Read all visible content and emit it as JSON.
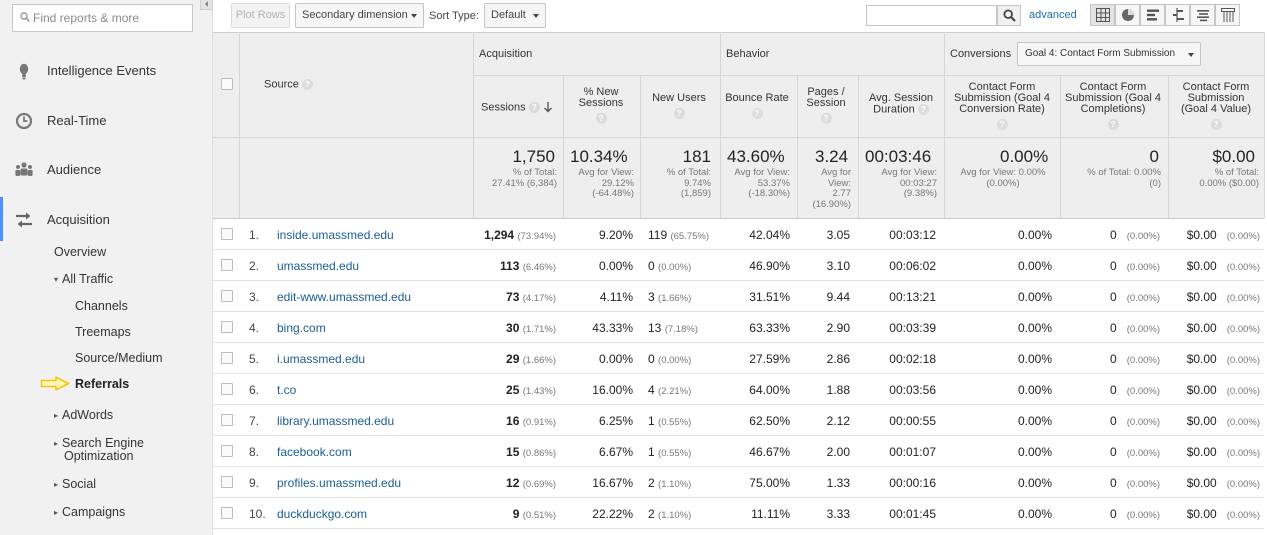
{
  "sidebar": {
    "search_placeholder": "Find reports & more",
    "main_items": [
      {
        "label": "Intelligence Events",
        "icon": "lightbulb-icon"
      },
      {
        "label": "Real-Time",
        "icon": "clock-icon"
      },
      {
        "label": "Audience",
        "icon": "people-icon"
      },
      {
        "label": "Acquisition",
        "icon": "acquisition-icon",
        "active": true
      }
    ],
    "overview": "Overview",
    "all_traffic": "All Traffic",
    "all_traffic_children": [
      "Channels",
      "Treemaps",
      "Source/Medium",
      "Referrals"
    ],
    "adwords": "AdWords",
    "seo_line1": "Search Engine",
    "seo_line2": "Optimization",
    "social": "Social",
    "campaigns": "Campaigns",
    "highlight_color": "#f4c20d"
  },
  "toolbar": {
    "plot_rows": "Plot Rows",
    "secondary_dimension": "Secondary dimension",
    "sort_type_label": "Sort Type:",
    "sort_type_value": "Default",
    "search_value": "",
    "advanced": "advanced",
    "view_icons": [
      "data-table-icon",
      "pie-chart-icon",
      "performance-icon",
      "comparison-icon",
      "term-cloud-icon",
      "pivot-icon"
    ]
  },
  "table": {
    "source_header": "Source",
    "groups": {
      "acquisition": "Acquisition",
      "behavior": "Behavior",
      "conversions": "Conversions"
    },
    "goal_select": "Goal 4: Contact Form Submission",
    "columns": {
      "sessions": "Sessions",
      "pct_new_sessions": "% New Sessions",
      "new_users": "New Users",
      "bounce_rate": "Bounce Rate",
      "pages_session": "Pages / Session",
      "avg_duration": "Avg. Session Duration",
      "goal_conv_rate": "Contact Form Submission (Goal 4 Conversion Rate)",
      "goal_completions": "Contact Form Submission (Goal 4 Completions)",
      "goal_value": "Contact Form Submission (Goal 4 Value)"
    },
    "totals": {
      "sessions": {
        "value": "1,750",
        "sub": "% of Total:\n27.41% (6,384)"
      },
      "pct_new_sessions": {
        "value": "10.34%",
        "sub": "Avg for View:\n29.12%\n(-64.48%)"
      },
      "new_users": {
        "value": "181",
        "sub": "% of Total:\n9.74%\n(1,859)"
      },
      "bounce_rate": {
        "value": "43.60%",
        "sub": "Avg for View:\n53.37%\n(-18.30%)"
      },
      "pages_session": {
        "value": "3.24",
        "sub": "Avg for\nView:\n2.77\n(16.90%)"
      },
      "avg_duration": {
        "value": "00:03:46",
        "sub": "Avg for View:\n00:03:27\n(9.38%)"
      },
      "goal_conv_rate": {
        "value": "0.00%",
        "sub": "Avg for View: 0.00%\n(0.00%)"
      },
      "goal_completions": {
        "value": "0",
        "sub": "% of Total: 0.00%\n(0)"
      },
      "goal_value": {
        "value": "$0.00",
        "sub": "% of Total:\n0.00% ($0.00)"
      }
    },
    "rows": [
      {
        "idx": "1.",
        "source": "inside.umassmed.edu",
        "sessions": "1,294",
        "sessions_pct": "(73.94%)",
        "pct_new": "9.20%",
        "new_users": "119",
        "new_users_pct": "(65.75%)",
        "bounce": "42.04%",
        "pages": "3.05",
        "duration": "00:03:12",
        "conv_rate": "0.00%",
        "completions": "0",
        "completions_pct": "(0.00%)",
        "value": "$0.00",
        "value_pct": "(0.00%)"
      },
      {
        "idx": "2.",
        "source": "umassmed.edu",
        "sessions": "113",
        "sessions_pct": "(6.46%)",
        "pct_new": "0.00%",
        "new_users": "0",
        "new_users_pct": "(0.00%)",
        "bounce": "46.90%",
        "pages": "3.10",
        "duration": "00:06:02",
        "conv_rate": "0.00%",
        "completions": "0",
        "completions_pct": "(0.00%)",
        "value": "$0.00",
        "value_pct": "(0.00%)"
      },
      {
        "idx": "3.",
        "source": "edit-www.umassmed.edu",
        "sessions": "73",
        "sessions_pct": "(4.17%)",
        "pct_new": "4.11%",
        "new_users": "3",
        "new_users_pct": "(1.66%)",
        "bounce": "31.51%",
        "pages": "9.44",
        "duration": "00:13:21",
        "conv_rate": "0.00%",
        "completions": "0",
        "completions_pct": "(0.00%)",
        "value": "$0.00",
        "value_pct": "(0.00%)"
      },
      {
        "idx": "4.",
        "source": "bing.com",
        "sessions": "30",
        "sessions_pct": "(1.71%)",
        "pct_new": "43.33%",
        "new_users": "13",
        "new_users_pct": "(7.18%)",
        "bounce": "63.33%",
        "pages": "2.90",
        "duration": "00:03:39",
        "conv_rate": "0.00%",
        "completions": "0",
        "completions_pct": "(0.00%)",
        "value": "$0.00",
        "value_pct": "(0.00%)"
      },
      {
        "idx": "5.",
        "source": "i.umassmed.edu",
        "sessions": "29",
        "sessions_pct": "(1.66%)",
        "pct_new": "0.00%",
        "new_users": "0",
        "new_users_pct": "(0.00%)",
        "bounce": "27.59%",
        "pages": "2.86",
        "duration": "00:02:18",
        "conv_rate": "0.00%",
        "completions": "0",
        "completions_pct": "(0.00%)",
        "value": "$0.00",
        "value_pct": "(0.00%)"
      },
      {
        "idx": "6.",
        "source": "t.co",
        "sessions": "25",
        "sessions_pct": "(1.43%)",
        "pct_new": "16.00%",
        "new_users": "4",
        "new_users_pct": "(2.21%)",
        "bounce": "64.00%",
        "pages": "1.88",
        "duration": "00:03:56",
        "conv_rate": "0.00%",
        "completions": "0",
        "completions_pct": "(0.00%)",
        "value": "$0.00",
        "value_pct": "(0.00%)"
      },
      {
        "idx": "7.",
        "source": "library.umassmed.edu",
        "sessions": "16",
        "sessions_pct": "(0.91%)",
        "pct_new": "6.25%",
        "new_users": "1",
        "new_users_pct": "(0.55%)",
        "bounce": "62.50%",
        "pages": "2.12",
        "duration": "00:00:55",
        "conv_rate": "0.00%",
        "completions": "0",
        "completions_pct": "(0.00%)",
        "value": "$0.00",
        "value_pct": "(0.00%)"
      },
      {
        "idx": "8.",
        "source": "facebook.com",
        "sessions": "15",
        "sessions_pct": "(0.86%)",
        "pct_new": "6.67%",
        "new_users": "1",
        "new_users_pct": "(0.55%)",
        "bounce": "46.67%",
        "pages": "2.00",
        "duration": "00:01:07",
        "conv_rate": "0.00%",
        "completions": "0",
        "completions_pct": "(0.00%)",
        "value": "$0.00",
        "value_pct": "(0.00%)"
      },
      {
        "idx": "9.",
        "source": "profiles.umassmed.edu",
        "sessions": "12",
        "sessions_pct": "(0.69%)",
        "pct_new": "16.67%",
        "new_users": "2",
        "new_users_pct": "(1.10%)",
        "bounce": "75.00%",
        "pages": "1.33",
        "duration": "00:00:16",
        "conv_rate": "0.00%",
        "completions": "0",
        "completions_pct": "(0.00%)",
        "value": "$0.00",
        "value_pct": "(0.00%)"
      },
      {
        "idx": "10.",
        "source": "duckduckgo.com",
        "sessions": "9",
        "sessions_pct": "(0.51%)",
        "pct_new": "22.22%",
        "new_users": "2",
        "new_users_pct": "(1.10%)",
        "bounce": "11.11%",
        "pages": "3.33",
        "duration": "00:01:45",
        "conv_rate": "0.00%",
        "completions": "0",
        "completions_pct": "(0.00%)",
        "value": "$0.00",
        "value_pct": "(0.00%)"
      }
    ]
  }
}
